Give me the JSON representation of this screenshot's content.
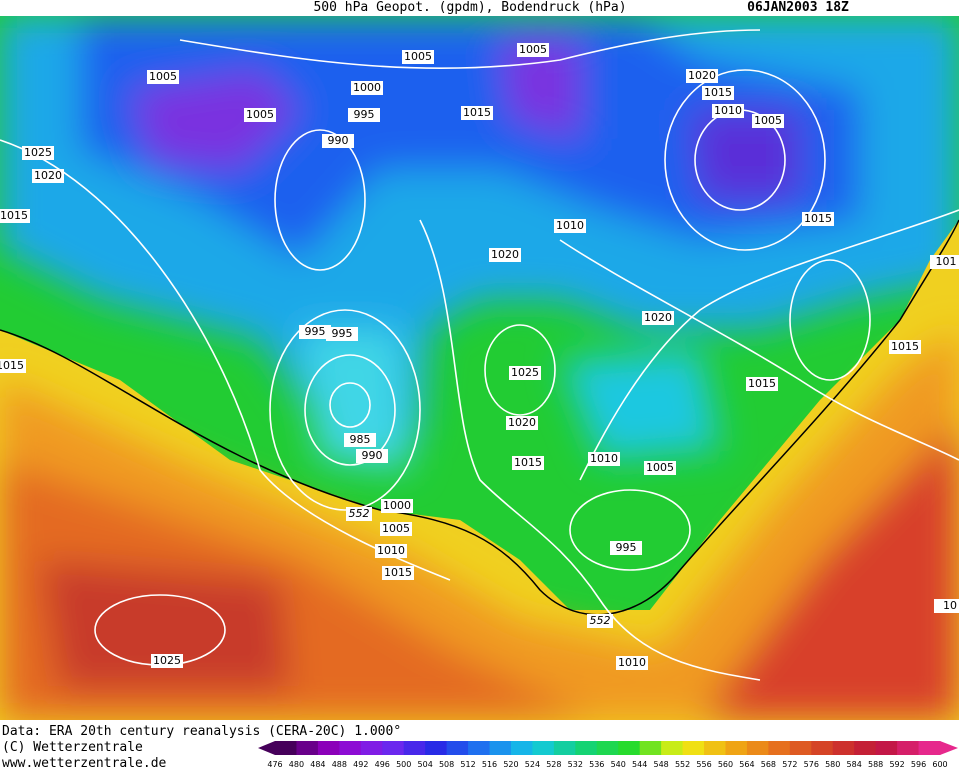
{
  "header": {
    "title": "500 hPa Geopot. (gpdm), Bodendruck (hPa)",
    "date": "06JAN2003 18Z"
  },
  "isobar_labels": [
    1005,
    1005,
    1005,
    1000,
    995,
    1005,
    1015,
    990,
    1025,
    1020,
    1015,
    1020,
    1015,
    1010,
    1005,
    1015,
    1010,
    1020,
    101,
    995,
    995,
    1015,
    1020,
    1015,
    1025,
    1015,
    985,
    990,
    1020,
    1015,
    1010,
    1005,
    1000,
    1005,
    1010,
    995,
    1015,
    1010,
    1025,
    10
  ],
  "contour_labels": [
    552,
    552
  ],
  "footer": {
    "source": "Data: ERA 20th century reanalysis (CERA-20C) 1.000°",
    "copyright": "(C) Wetterzentrale",
    "url": "www.wetterzentrale.de"
  },
  "colorbar": {
    "labels": [
      476,
      480,
      484,
      488,
      492,
      496,
      500,
      504,
      508,
      512,
      516,
      520,
      524,
      528,
      532,
      536,
      540,
      544,
      548,
      552,
      556,
      560,
      564,
      568,
      572,
      576,
      580,
      584,
      588,
      592,
      596,
      600
    ]
  }
}
